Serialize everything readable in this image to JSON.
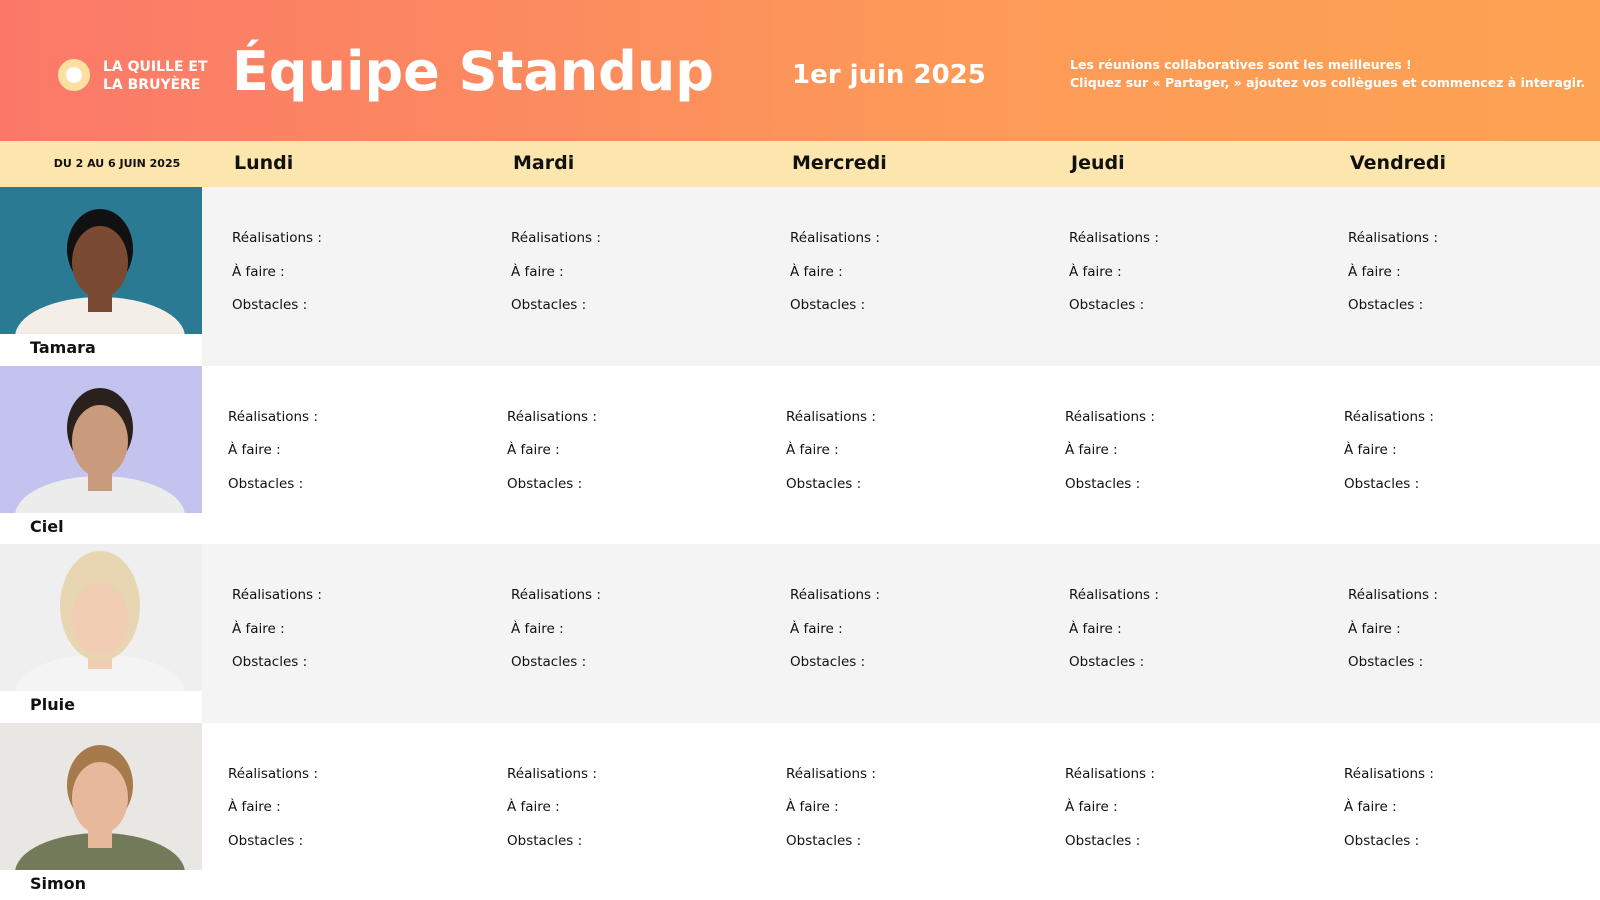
{
  "header": {
    "logo": [
      "LA QUILLE ET",
      "LA BRUYÈRE"
    ],
    "title": "Équipe Standup",
    "date": "1er juin 2025",
    "note": [
      "Les réunions collaboratives sont les meilleures !",
      "Cliquez sur « Partager, » ajoutez vos collègues et commencez à interagir."
    ]
  },
  "week": "DU 2 AU 6 JUIN 2025",
  "days": [
    "Lundi",
    "Mardi",
    "Mercredi",
    "Jeudi",
    "Vendredi"
  ],
  "rows": [
    {
      "name": "Tamara",
      "cells": [
        [
          "Réalisations :",
          "À faire :",
          "Obstacles :"
        ],
        [
          "Réalisations :",
          "À faire :",
          "Obstacles :"
        ],
        [
          "Réalisations :",
          "À faire :",
          "Obstacles :"
        ],
        [
          "Réalisations :",
          "À faire :",
          "Obstacles :"
        ],
        [
          "Réalisations :",
          "À faire :",
          "Obstacles :"
        ]
      ]
    },
    {
      "name": "Ciel",
      "cells": [
        [
          "Réalisations :",
          "À faire :",
          "Obstacles :"
        ],
        [
          "Réalisations :",
          "À faire :",
          "Obstacles :"
        ],
        [
          "Réalisations :",
          "À faire :",
          "Obstacles :"
        ],
        [
          "Réalisations :",
          "À faire :",
          "Obstacles :"
        ],
        [
          "Réalisations :",
          "À faire :",
          "Obstacles :"
        ]
      ]
    },
    {
      "name": "Pluie",
      "cells": [
        [
          "Réalisations :",
          "À faire :",
          "Obstacles :"
        ],
        [
          "Réalisations :",
          "À faire :",
          "Obstacles :"
        ],
        [
          "Réalisations :",
          "À faire :",
          "Obstacles :"
        ],
        [
          "Réalisations :",
          "À faire :",
          "Obstacles :"
        ],
        [
          "Réalisations :",
          "À faire :",
          "Obstacles :"
        ]
      ]
    },
    {
      "name": "Simon",
      "cells": [
        [
          "Réalisations :",
          "À faire :",
          "Obstacles :"
        ],
        [
          "Réalisations :",
          "À faire :",
          "Obstacles :"
        ],
        [
          "Réalisations :",
          "À faire :",
          "Obstacles :"
        ],
        [
          "Réalisations :",
          "À faire :",
          "Obstacles :"
        ],
        [
          "Réalisations :",
          "À faire :",
          "Obstacles :"
        ]
      ]
    }
  ]
}
